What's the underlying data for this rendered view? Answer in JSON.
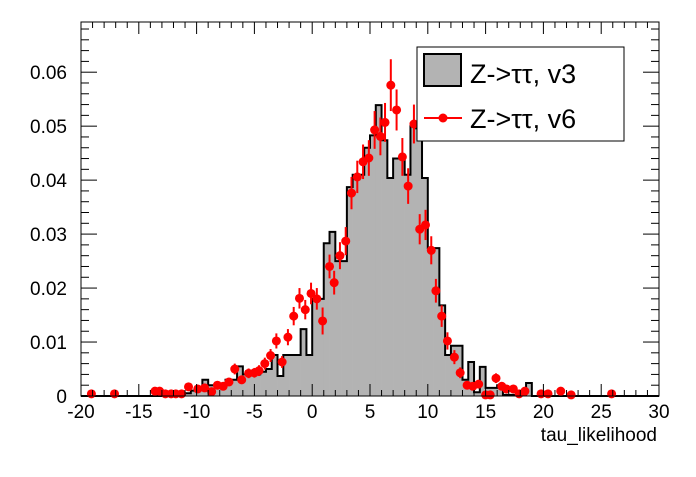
{
  "chart_data": {
    "type": "bar",
    "title": "",
    "xlabel": "tau_likelihood",
    "ylabel": "",
    "xlim": [
      -20,
      30
    ],
    "ylim": [
      0,
      0.0693
    ],
    "grid": false,
    "legend_position": "top-right",
    "x_ticks": [
      "-20",
      "-15",
      "-10",
      "-5",
      "0",
      "5",
      "10",
      "15",
      "20",
      "25",
      "30"
    ],
    "x_tick_values": [
      -20,
      -15,
      -10,
      -5,
      0,
      5,
      10,
      15,
      20,
      25,
      30
    ],
    "y_ticks": [
      "0",
      "0.01",
      "0.02",
      "0.03",
      "0.04",
      "0.05",
      "0.06"
    ],
    "y_tick_values": [
      0,
      0.01,
      0.02,
      0.03,
      0.04,
      0.05,
      0.06
    ],
    "colors": {
      "hist_fill": "#b3b3b3",
      "hist_line": "#000000",
      "points": "#ff0000"
    },
    "histogram": {
      "name": "Z->ττ, v3",
      "bin_start": -20,
      "bin_width": 0.5,
      "values": [
        0,
        0,
        0,
        0,
        0,
        0,
        0,
        0,
        0,
        0,
        0,
        0,
        0,
        0,
        0,
        0,
        0.0003,
        0.0005,
        0.0005,
        0.001,
        0.0012,
        0.003,
        0.002,
        0.002,
        0.0015,
        0.003,
        0.003,
        0.0055,
        0.004,
        0.004,
        0.004,
        0.0045,
        0.005,
        0.0076,
        0.0037,
        0.0076,
        0.0076,
        0.0076,
        0.0124,
        0.0076,
        0.018,
        0.018,
        0.0283,
        0.0304,
        0.025,
        0.025,
        0.0387,
        0.041,
        0.041,
        0.046,
        0.0483,
        0.0539,
        0.0474,
        0.0404,
        0.044,
        0.044,
        0.041,
        0.05,
        0.0496,
        0.0404,
        0.0274,
        0.0274,
        0.0168,
        0.0076,
        0.0093,
        0.0093,
        0.003,
        0.0063,
        0.0007,
        0.0054,
        0.0015,
        0.0015,
        0.002,
        0.0002,
        0.0002,
        0.0002,
        0.0002,
        0.0024,
        0,
        0,
        0,
        0,
        0,
        0,
        0,
        0,
        0,
        0,
        0,
        0,
        0,
        0,
        0,
        0,
        0,
        0,
        0,
        0,
        0,
        0
      ]
    },
    "points": {
      "name": "Z->ττ, v6",
      "x": [
        -19.1,
        -17.1,
        -13.6,
        -13.2,
        -12.7,
        -12.2,
        -11.8,
        -11.3,
        -10.7,
        -9.9,
        -9.3,
        -8.7,
        -8.2,
        -7.7,
        -7.2,
        -6.7,
        -6.1,
        -5.5,
        -5.0,
        -4.6,
        -4.1,
        -3.6,
        -3.1,
        -2.6,
        -2.1,
        -1.6,
        -1.1,
        -0.6,
        -0.1,
        0.4,
        0.9,
        1.5,
        1.9,
        2.4,
        2.9,
        3.4,
        3.9,
        4.4,
        4.9,
        5.4,
        5.9,
        6.3,
        6.8,
        7.3,
        7.8,
        8.3,
        8.8,
        9.3,
        9.8,
        10.3,
        10.7,
        11.2,
        11.7,
        12.3,
        12.8,
        13.4,
        13.9,
        14.4,
        15.0,
        15.4,
        15.9,
        16.4,
        16.8,
        17.4,
        17.9,
        18.4,
        19.8,
        20.4,
        21.5,
        22.4,
        25.9
      ],
      "y": [
        0.0004,
        0.0004,
        0.0009,
        0.0009,
        0.0004,
        0.0004,
        0.0004,
        0.0004,
        0.0017,
        0.0013,
        0.0015,
        0.0008,
        0.002,
        0.0018,
        0.0026,
        0.005,
        0.003,
        0.0042,
        0.0043,
        0.0047,
        0.006,
        0.0075,
        0.0102,
        0.0063,
        0.0109,
        0.0148,
        0.0181,
        0.016,
        0.019,
        0.018,
        0.0139,
        0.024,
        0.021,
        0.026,
        0.0287,
        0.0376,
        0.0406,
        0.0434,
        0.0441,
        0.0493,
        0.0481,
        0.0507,
        0.0576,
        0.053,
        0.0443,
        0.0389,
        0.0504,
        0.0309,
        0.0317,
        0.027,
        0.0195,
        0.0148,
        0.0102,
        0.0072,
        0.0043,
        0.002,
        0.0018,
        0.0022,
        0.0002,
        0.0002,
        0.0033,
        0.0018,
        0.0013,
        0.0013,
        0.0004,
        0.0009,
        0.0004,
        0.0004,
        0.0009,
        0.0002,
        0.0004
      ],
      "err": [
        0.0003,
        0.0003,
        0.0004,
        0.0004,
        0.0003,
        0.0003,
        0.0003,
        0.0003,
        0.0006,
        0.0005,
        0.0005,
        0.0004,
        0.0006,
        0.0006,
        0.0007,
        0.001,
        0.0008,
        0.0009,
        0.0009,
        0.001,
        0.0011,
        0.0012,
        0.0014,
        0.0011,
        0.0015,
        0.0017,
        0.0019,
        0.0018,
        0.002,
        0.002,
        0.0025,
        0.0022,
        0.0022,
        0.0025,
        0.0026,
        0.003,
        0.003,
        0.0032,
        0.0033,
        0.0035,
        0.0035,
        0.0036,
        0.0048,
        0.0038,
        0.0035,
        0.0033,
        0.0036,
        0.0028,
        0.0028,
        0.0026,
        0.0022,
        0.002,
        0.0016,
        0.0013,
        0.001,
        0.0007,
        0.0007,
        0.0007,
        0.0003,
        0.0003,
        0.0009,
        0.0006,
        0.0006,
        0.0006,
        0.0003,
        0.0005,
        0.0003,
        0.0003,
        0.0005,
        0.0003,
        0.0003
      ]
    },
    "legend": [
      {
        "label": "Z->ττ, v3",
        "style": "filled-box"
      },
      {
        "label": "Z->ττ, v6",
        "style": "marker-line"
      }
    ]
  }
}
